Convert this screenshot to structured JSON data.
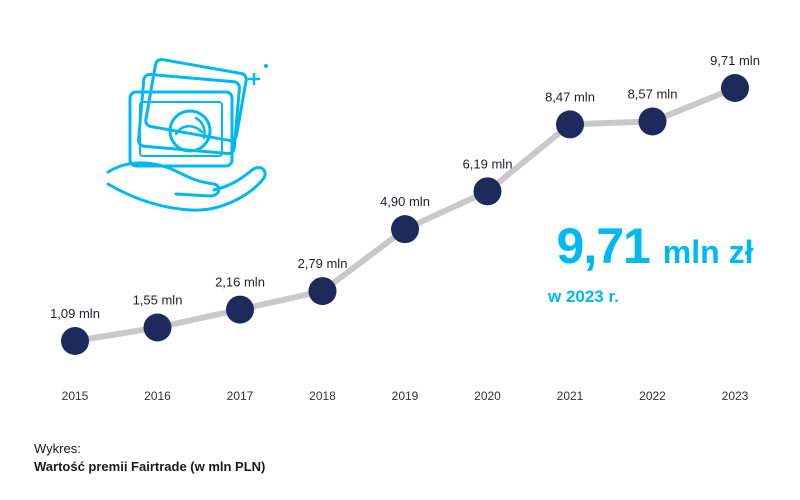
{
  "colors": {
    "line": "#c9c9c9",
    "marker": "#1f2a5c",
    "accent": "#00b9f1",
    "text": "#1f1f2e"
  },
  "icon": "money-in-hand-icon",
  "highlight": {
    "value": "9,71",
    "unit": "mln zł",
    "sub": "w 2023 r."
  },
  "caption": {
    "prefix": "Wykres:",
    "title": "Wartość premii Fairtrade (w mln PLN)"
  },
  "chart_data": {
    "type": "line",
    "categories": [
      "2015",
      "2016",
      "2017",
      "2018",
      "2019",
      "2020",
      "2021",
      "2022",
      "2023"
    ],
    "values": [
      1.09,
      1.55,
      2.16,
      2.79,
      4.9,
      6.19,
      8.47,
      8.57,
      9.71
    ],
    "data_labels": [
      "1,09 mln",
      "1,55 mln",
      "2,16 mln",
      "2,79 mln",
      "4,90 mln",
      "6,19 mln",
      "8,47 mln",
      "8,57 mln",
      "9,71 mln"
    ],
    "grid": false,
    "legend": "none"
  }
}
